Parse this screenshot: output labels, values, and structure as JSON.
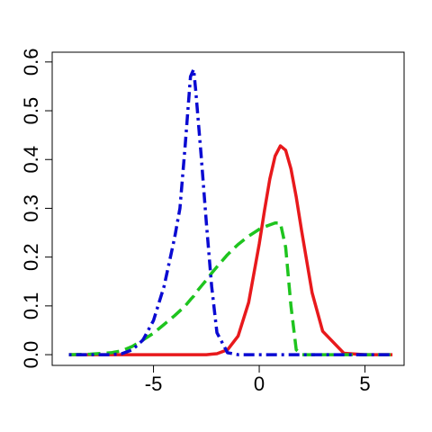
{
  "chart_data": {
    "type": "line",
    "x": [
      -9,
      -8,
      -7,
      -6.5,
      -6,
      -5.5,
      -5,
      -4.5,
      -4,
      -3.75,
      -3.5,
      -3.25,
      -3.1,
      -3,
      -2.75,
      -2.5,
      -2.25,
      -2,
      -1.5,
      -1,
      -0.5,
      0,
      0.25,
      0.5,
      0.75,
      1,
      1.25,
      1.5,
      1.75,
      2,
      2.5,
      3,
      4,
      5,
      6.3
    ],
    "series": [
      {
        "color": "#e8191c",
        "linestyle": "solid",
        "values": [
          0,
          0,
          0,
          0,
          0,
          0,
          0,
          0,
          0,
          0,
          0,
          0,
          0,
          0,
          0,
          0,
          0.001,
          0.002,
          0.01,
          0.038,
          0.107,
          0.227,
          0.296,
          0.36,
          0.407,
          0.428,
          0.419,
          0.381,
          0.323,
          0.255,
          0.127,
          0.048,
          0.003,
          0,
          0
        ]
      },
      {
        "color": "#1ec41e",
        "linestyle": "dashed",
        "values": [
          0,
          0.001,
          0.004,
          0.008,
          0.017,
          0.03,
          0.044,
          0.062,
          0.08,
          0.09,
          0.1,
          0.113,
          0.12,
          0.127,
          0.14,
          0.153,
          0.167,
          0.18,
          0.205,
          0.226,
          0.243,
          0.257,
          0.262,
          0.266,
          0.27,
          0.27,
          0.22,
          0.1,
          0.01,
          0,
          0,
          0,
          0,
          0,
          0
        ]
      },
      {
        "color": "#0a0ad2",
        "linestyle": "dotdash",
        "values": [
          0,
          0,
          0,
          0.002,
          0.01,
          0.03,
          0.07,
          0.14,
          0.24,
          0.3,
          0.43,
          0.57,
          0.585,
          0.54,
          0.41,
          0.27,
          0.14,
          0.045,
          0.004,
          0,
          0,
          0,
          0,
          0,
          0,
          0,
          0,
          0,
          0,
          0,
          0,
          0,
          0,
          0,
          0
        ]
      }
    ],
    "xlim": [
      -9.79,
      6.85
    ],
    "ylim": [
      -0.022,
      0.62
    ],
    "xticks": [
      -5,
      0,
      5
    ],
    "yticks": [
      {
        "value": 0,
        "label": "0.0"
      },
      0.1,
      0.2,
      0.3,
      0.4,
      0.5,
      0.6
    ]
  }
}
